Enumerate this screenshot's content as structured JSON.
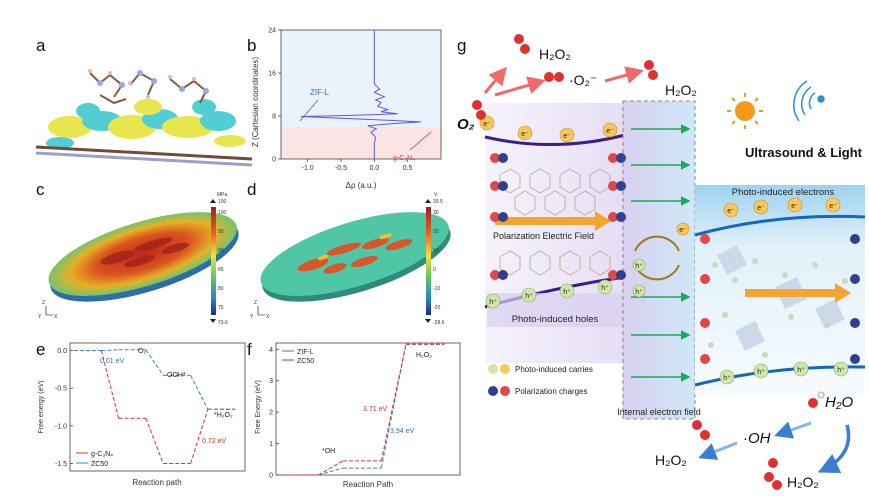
{
  "panels": {
    "a": "a",
    "b": "b",
    "c": "c",
    "d": "d",
    "e": "e",
    "f": "f",
    "g": "g"
  },
  "colorbar_c": {
    "unit": "MPa",
    "top": "100",
    "bottom": "73.6",
    "ticks": [
      "100",
      "95",
      "90",
      "85",
      "80",
      "75"
    ]
  },
  "colorbar_d": {
    "unit": "V",
    "top": "39.5",
    "bottom": "-28.6",
    "ticks": [
      "30",
      "20",
      "10",
      "0",
      "-10",
      "-20"
    ]
  },
  "axis_triad": {
    "x": "X",
    "y": "Y",
    "z": "Z"
  },
  "chart_data": [
    {
      "id": "b",
      "type": "line",
      "xlabel": "Δρ (a.u.)",
      "ylabel": "Z (Cartesian coordinates)",
      "xlim": [
        -1.4,
        1.0
      ],
      "ylim": [
        0,
        24
      ],
      "xticks": [
        "-1.0",
        "-0.5",
        "0.0",
        "0.5"
      ],
      "yticks": [
        "0",
        "8",
        "16",
        "24"
      ],
      "annotations": [
        "ZIF-L",
        "g-C₃N₄"
      ],
      "series": [
        {
          "points": [
            [
              0,
              0
            ],
            [
              0,
              3
            ],
            [
              0.02,
              4
            ],
            [
              -0.05,
              5
            ],
            [
              0.03,
              5.6
            ],
            [
              -0.1,
              6.2
            ],
            [
              0.3,
              6.6
            ],
            [
              0.7,
              6.9
            ],
            [
              0.2,
              7.2
            ],
            [
              -0.5,
              7.6
            ],
            [
              -1.1,
              7.9
            ],
            [
              -0.4,
              8.1
            ],
            [
              0.35,
              8.4
            ],
            [
              0.1,
              8.8
            ],
            [
              0.2,
              9.2
            ],
            [
              0.05,
              9.8
            ],
            [
              0.1,
              10.5
            ],
            [
              0.02,
              11
            ],
            [
              0.15,
              11.6
            ],
            [
              0.0,
              12.4
            ],
            [
              0.08,
              13
            ],
            [
              0.0,
              14
            ],
            [
              0.0,
              24
            ]
          ]
        }
      ]
    },
    {
      "id": "e",
      "type": "line",
      "xlabel": "Reaction path",
      "ylabel": "Free energy (eV)",
      "ylim": [
        -1.6,
        0.1
      ],
      "yticks": [
        "0.0",
        "-0.5",
        "-1.0",
        "-1.5"
      ],
      "annotations": [
        "O₂",
        "OOH*",
        "*H₂O₂",
        "0.01 eV",
        "0.72 eV"
      ],
      "series": [
        {
          "name": "g-C₃N₄",
          "color": "#e03030",
          "steps": [
            0,
            -0.9,
            -1.5,
            -0.78
          ]
        },
        {
          "name": "ZC50",
          "color": "#3a85c8",
          "steps": [
            0,
            0.01,
            -0.33,
            -0.78
          ]
        }
      ]
    },
    {
      "id": "f",
      "type": "line",
      "xlabel": "Reaction Path",
      "ylabel": "Free Energy (eV)",
      "ylim": [
        0,
        4.2
      ],
      "yticks": [
        "0",
        "1",
        "2",
        "3",
        "4"
      ],
      "annotations": [
        "*OH",
        "H₂O₂",
        "3.71 eV",
        "3.94 eV"
      ],
      "series": [
        {
          "name": "ZIF-L",
          "color": "#3a85c8",
          "steps": [
            0,
            0.22,
            4.16
          ]
        },
        {
          "name": "ZC50",
          "color": "#e03030",
          "steps": [
            0,
            0.45,
            4.16
          ]
        }
      ]
    }
  ],
  "g": {
    "h2o2_top_left": "H₂O₂",
    "superoxide": "·O₂⁻",
    "h2o2_top_right": "H₂O₂",
    "o2": "O₂",
    "ultrasound_light": "Ultrasound & Light",
    "photo_electrons": "Photo-induced electrons",
    "polarization_field": "Polarization Electric Field",
    "photo_holes": "Photo-induced holes",
    "legend_carries": "Photo-induced carries",
    "legend_charges": "Polarization charges",
    "internal_field": "Internal electron field",
    "h2o": "H₂O",
    "oh_radical": "·OH",
    "h2o2_bottom_left": "H₂O₂",
    "h2o2_bottom_right": "H₂O₂",
    "e_label": "e⁻",
    "h_label": "h⁺"
  }
}
